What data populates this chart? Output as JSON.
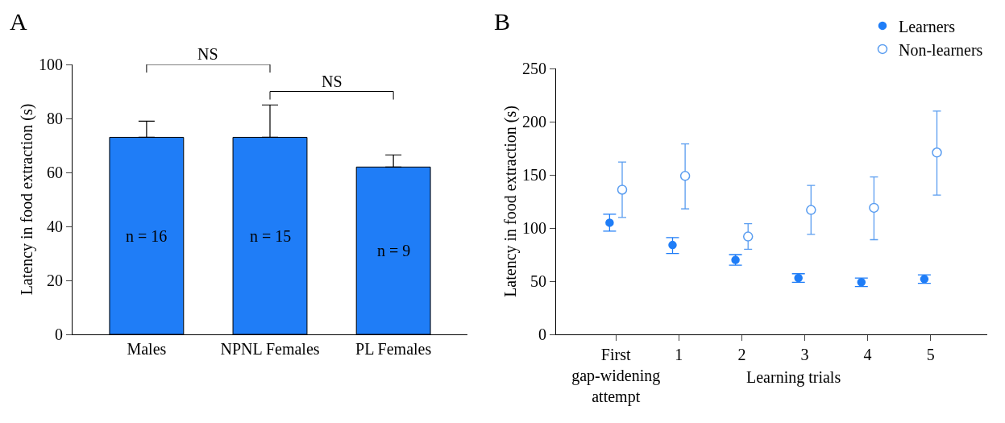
{
  "chart_data": [
    {
      "type": "bar",
      "title": "A",
      "categories": [
        "Males",
        "NPNL Females",
        "PL Females"
      ],
      "values": [
        73,
        73,
        62
      ],
      "color": "#1f7df7",
      "errors": [
        [
          73,
          79
        ],
        [
          73,
          85
        ],
        [
          62,
          66.5
        ]
      ],
      "ylim": [
        0,
        100
      ],
      "yticks": [
        0,
        20,
        40,
        60,
        80,
        100
      ],
      "ylabel": "Latency in food extraction (s)",
      "grid": false,
      "legend": false,
      "annotations": [
        "NS",
        "NS",
        "n = 16",
        "n = 15",
        "n = 9"
      ]
    },
    {
      "type": "scatter",
      "title": "B",
      "categories": [
        "First\ngap-widening\nattempt",
        "1",
        "2",
        "3",
        "4",
        "5"
      ],
      "xlabel": "Learning trials",
      "ylabel": "Latency in food extraction (s)",
      "ylim": [
        0,
        250
      ],
      "yticks": [
        0,
        50,
        100,
        150,
        200,
        250
      ],
      "grid": false,
      "legend": "top right",
      "marker": "circle",
      "series": [
        {
          "name": "Learners",
          "color": "#1f7df7",
          "values": [
            105,
            84,
            70,
            53,
            49,
            52
          ],
          "errors": [
            [
              97,
              113
            ],
            [
              76,
              91
            ],
            [
              65,
              75
            ],
            [
              49,
              57
            ],
            [
              45,
              53
            ],
            [
              48,
              56
            ]
          ]
        },
        {
          "name": "Non-learners",
          "color": "#5a9df0",
          "values": [
            136,
            149,
            92,
            117,
            119,
            171
          ],
          "errors": [
            [
              110,
              162
            ],
            [
              118,
              179
            ],
            [
              80,
              104
            ],
            [
              94,
              140
            ],
            [
              89,
              148
            ],
            [
              131,
              210
            ]
          ]
        }
      ]
    }
  ]
}
